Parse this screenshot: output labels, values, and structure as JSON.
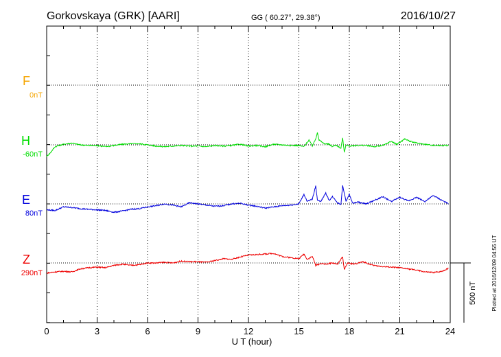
{
  "header": {
    "station": "Gorkovskaya (GRK)  [AARI]",
    "coords": "GG ( 60.27°,  29.38°)",
    "date": "2016/10/27"
  },
  "side_note": "Plotted at 2016/12/09 04:55 UT",
  "scale_label": "500 nT",
  "colors": {
    "F": "#f5a500",
    "H": "#00dd00",
    "E": "#0000dd",
    "Z": "#ee0000"
  },
  "chart_data": {
    "type": "line",
    "xlabel": "U T (hour)",
    "xlim": [
      0,
      24
    ],
    "x_ticks": [
      0,
      3,
      6,
      9,
      12,
      15,
      18,
      21,
      24
    ],
    "x_tick_labels": [
      "0",
      "3",
      "6",
      "9",
      "12",
      "15",
      "18",
      "21",
      "24"
    ],
    "grid": true,
    "scale_bar_nT": 500,
    "channels": [
      {
        "name": "F",
        "baseline": "0nT",
        "points": []
      },
      {
        "name": "H",
        "baseline": "-60nT",
        "points": [
          [
            0,
            -95
          ],
          [
            0.2,
            -70
          ],
          [
            0.5,
            -15
          ],
          [
            1,
            5
          ],
          [
            1.5,
            15
          ],
          [
            2,
            0
          ],
          [
            2.5,
            -5
          ],
          [
            3,
            -5
          ],
          [
            3.5,
            -15
          ],
          [
            4,
            -5
          ],
          [
            4.5,
            5
          ],
          [
            5,
            10
          ],
          [
            5.5,
            10
          ],
          [
            6,
            0
          ],
          [
            6.5,
            -10
          ],
          [
            7,
            -15
          ],
          [
            7.5,
            -10
          ],
          [
            8,
            -5
          ],
          [
            8.5,
            -10
          ],
          [
            9,
            -10
          ],
          [
            9.5,
            -15
          ],
          [
            10,
            -5
          ],
          [
            10.5,
            -10
          ],
          [
            11,
            -5
          ],
          [
            11.5,
            5
          ],
          [
            12,
            -10
          ],
          [
            12.5,
            -5
          ],
          [
            13,
            -15
          ],
          [
            13.5,
            5
          ],
          [
            14,
            0
          ],
          [
            14.5,
            -5
          ],
          [
            15,
            -5
          ],
          [
            15.3,
            -15
          ],
          [
            15.6,
            40
          ],
          [
            15.8,
            -10
          ],
          [
            16,
            50
          ],
          [
            16.1,
            105
          ],
          [
            16.2,
            40
          ],
          [
            16.5,
            10
          ],
          [
            16.8,
            5
          ],
          [
            17,
            -15
          ],
          [
            17.2,
            0
          ],
          [
            17.5,
            -30
          ],
          [
            17.6,
            60
          ],
          [
            17.7,
            -60
          ],
          [
            17.8,
            0
          ],
          [
            18,
            -10
          ],
          [
            18.5,
            -5
          ],
          [
            19,
            -5
          ],
          [
            19.5,
            -15
          ],
          [
            20,
            -5
          ],
          [
            20.5,
            30
          ],
          [
            20.8,
            5
          ],
          [
            21,
            20
          ],
          [
            21.3,
            50
          ],
          [
            21.6,
            30
          ],
          [
            22,
            15
          ],
          [
            22.5,
            5
          ],
          [
            23,
            -5
          ],
          [
            23.5,
            -5
          ],
          [
            23.9,
            -5
          ]
        ]
      },
      {
        "name": "E",
        "baseline": "80nT",
        "points": [
          [
            0,
            -50
          ],
          [
            0.5,
            -55
          ],
          [
            1,
            -25
          ],
          [
            1.5,
            -30
          ],
          [
            2,
            -40
          ],
          [
            2.5,
            -45
          ],
          [
            3,
            -50
          ],
          [
            3.5,
            -55
          ],
          [
            4,
            -70
          ],
          [
            4.5,
            -60
          ],
          [
            5,
            -45
          ],
          [
            5.5,
            -40
          ],
          [
            6,
            -25
          ],
          [
            6.5,
            -15
          ],
          [
            7,
            0
          ],
          [
            7.5,
            -10
          ],
          [
            8,
            -25
          ],
          [
            8.5,
            10
          ],
          [
            9,
            0
          ],
          [
            9.5,
            -10
          ],
          [
            10,
            -20
          ],
          [
            10.5,
            -15
          ],
          [
            11,
            0
          ],
          [
            11.5,
            5
          ],
          [
            12,
            -10
          ],
          [
            12.5,
            -20
          ],
          [
            13,
            -35
          ],
          [
            13.5,
            -25
          ],
          [
            14,
            -15
          ],
          [
            14.5,
            -10
          ],
          [
            15,
            0
          ],
          [
            15.3,
            80
          ],
          [
            15.5,
            20
          ],
          [
            15.8,
            40
          ],
          [
            16,
            150
          ],
          [
            16.1,
            35
          ],
          [
            16.3,
            20
          ],
          [
            16.6,
            90
          ],
          [
            16.8,
            30
          ],
          [
            17,
            60
          ],
          [
            17.3,
            10
          ],
          [
            17.5,
            -5
          ],
          [
            17.6,
            160
          ],
          [
            17.8,
            20
          ],
          [
            18,
            80
          ],
          [
            18.2,
            5
          ],
          [
            18.5,
            15
          ],
          [
            19,
            0
          ],
          [
            19.5,
            30
          ],
          [
            20,
            60
          ],
          [
            20.5,
            20
          ],
          [
            21,
            55
          ],
          [
            21.5,
            25
          ],
          [
            22,
            55
          ],
          [
            22.5,
            20
          ],
          [
            23,
            70
          ],
          [
            23.5,
            30
          ],
          [
            23.9,
            0
          ]
        ]
      },
      {
        "name": "Z",
        "baseline": "290nT",
        "points": [
          [
            0,
            -85
          ],
          [
            0.5,
            -75
          ],
          [
            1,
            -70
          ],
          [
            1.5,
            -75
          ],
          [
            2,
            -50
          ],
          [
            2.5,
            -40
          ],
          [
            3,
            -35
          ],
          [
            3.5,
            -40
          ],
          [
            4,
            -20
          ],
          [
            4.5,
            -10
          ],
          [
            5,
            -20
          ],
          [
            5.5,
            -15
          ],
          [
            6,
            0
          ],
          [
            6.5,
            0
          ],
          [
            7,
            5
          ],
          [
            7.5,
            0
          ],
          [
            8,
            15
          ],
          [
            8.5,
            10
          ],
          [
            9,
            10
          ],
          [
            9.5,
            5
          ],
          [
            10,
            20
          ],
          [
            10.5,
            35
          ],
          [
            11,
            30
          ],
          [
            11.5,
            50
          ],
          [
            12,
            65
          ],
          [
            12.5,
            70
          ],
          [
            13,
            75
          ],
          [
            13.5,
            80
          ],
          [
            14,
            55
          ],
          [
            14.5,
            45
          ],
          [
            15,
            35
          ],
          [
            15.3,
            75
          ],
          [
            15.5,
            30
          ],
          [
            15.8,
            55
          ],
          [
            16,
            -20
          ],
          [
            16.3,
            -5
          ],
          [
            16.6,
            -10
          ],
          [
            17,
            0
          ],
          [
            17.3,
            -10
          ],
          [
            17.6,
            50
          ],
          [
            17.7,
            -55
          ],
          [
            17.9,
            0
          ],
          [
            18.3,
            -10
          ],
          [
            18.8,
            10
          ],
          [
            19.2,
            -10
          ],
          [
            19.6,
            -25
          ],
          [
            20,
            -30
          ],
          [
            20.5,
            -35
          ],
          [
            21,
            -40
          ],
          [
            21.5,
            -50
          ],
          [
            22,
            -60
          ],
          [
            22.5,
            -75
          ],
          [
            23,
            -80
          ],
          [
            23.5,
            -70
          ],
          [
            23.9,
            -45
          ]
        ]
      }
    ]
  }
}
